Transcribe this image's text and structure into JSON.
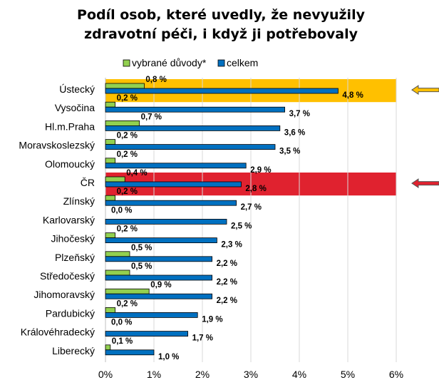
{
  "chart_data": {
    "type": "bar",
    "orientation": "horizontal",
    "title_lines": [
      "Podíl osob, které uvedly, že nevyužily",
      "zdravotní péči, i když ji potřebovaly"
    ],
    "categories": [
      "Ústecký",
      "Vysočina",
      "Hl.m.Praha",
      "Moravskoslezský",
      "Olomoucký",
      "ČR",
      "Zlínský",
      "Karlovarský",
      "Jihočeský",
      "Plzeňský",
      "Středočeský",
      "Jihomoravský",
      "Pardubický",
      "Královéhradecký",
      "Liberecký"
    ],
    "series": [
      {
        "name": "vybrané důvody*",
        "color": "#92D050",
        "values": [
          0.8,
          0.2,
          0.7,
          0.2,
          0.2,
          0.4,
          0.2,
          0.0,
          0.2,
          0.5,
          0.5,
          0.9,
          0.2,
          0.0,
          0.1
        ],
        "labels": [
          "0,8 %",
          "0,2 %",
          "0,7 %",
          "0,2 %",
          "0,2 %",
          "0,4 %",
          "0,2 %",
          "0,0 %",
          "0,2 %",
          "0,5 %",
          "0,5 %",
          "0,9 %",
          "0,2 %",
          "0,0 %",
          "0,1 %"
        ]
      },
      {
        "name": "celkem",
        "color": "#0070C0",
        "values": [
          4.8,
          3.7,
          3.6,
          3.5,
          2.9,
          2.8,
          2.7,
          2.5,
          2.3,
          2.2,
          2.2,
          2.2,
          1.9,
          1.7,
          1.0
        ],
        "labels": [
          "4,8 %",
          "3,7 %",
          "3,6 %",
          "3,5 %",
          "2,9 %",
          "2,8 %",
          "2,7 %",
          "2,5 %",
          "2,3 %",
          "2,2 %",
          "2,2 %",
          "2,2 %",
          "1,9 %",
          "1,7 %",
          "1,0 %"
        ]
      }
    ],
    "xlim": [
      0,
      6
    ],
    "xticks": [
      0,
      1,
      2,
      3,
      4,
      5,
      6
    ],
    "xtick_labels": [
      "0%",
      "1%",
      "2%",
      "3%",
      "4%",
      "5%",
      "6%"
    ],
    "grid": "vertical",
    "legend_position": "top",
    "highlights": [
      {
        "category": "Ústecký",
        "color": "#FFC000",
        "arrow_color": "#FFC000"
      },
      {
        "category": "ČR",
        "color": "#E0222F",
        "arrow_color": "#E0222F"
      }
    ]
  }
}
